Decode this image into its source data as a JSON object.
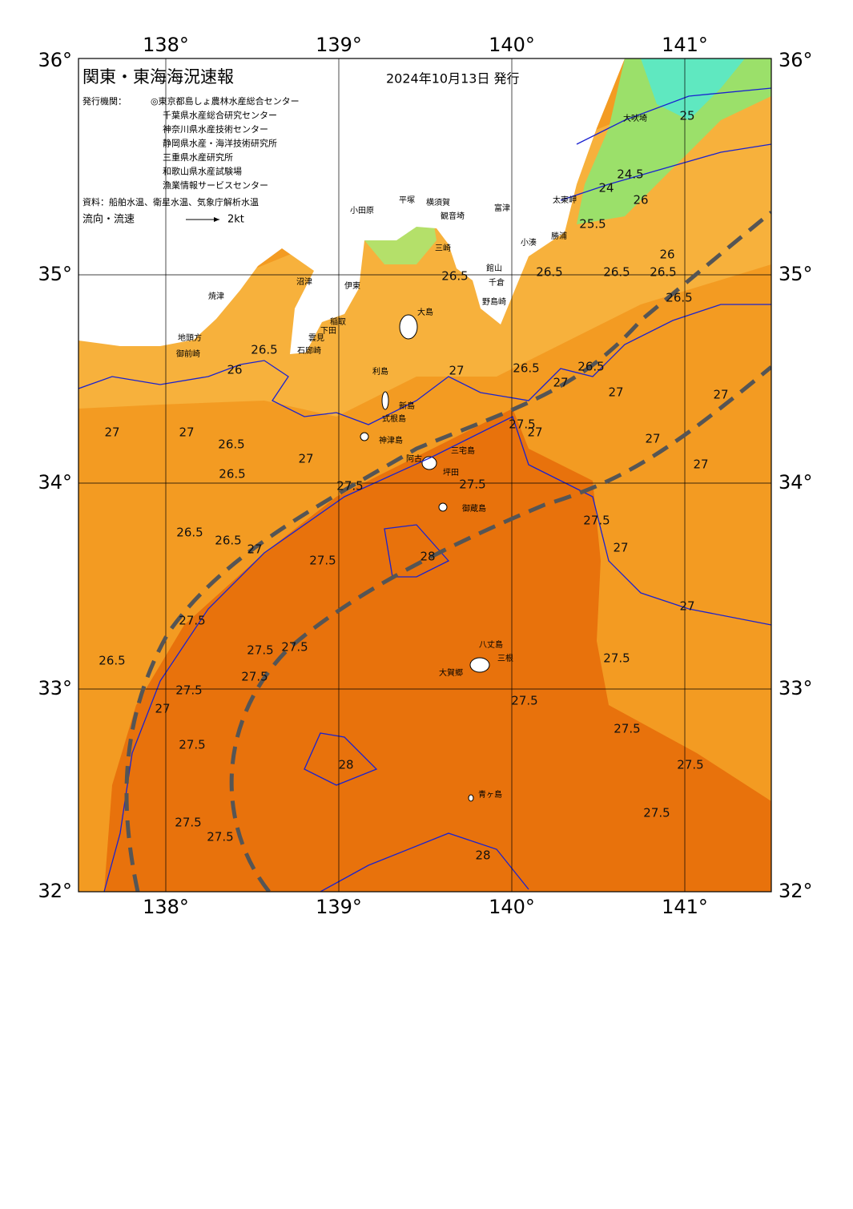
{
  "map": {
    "title": "関東・東海海況速報",
    "date": "2024年10月13日 発行",
    "publisher_label": "発行機関：",
    "publishers": [
      "◎東京都島しょ農林水産総合センター",
      "千葉県水産総合研究センター",
      "神奈川県水産技術センター",
      "静岡県水産・海洋技術研究所",
      "三重県水産研究所",
      "和歌山県水産試験場",
      "漁業情報サービスセンター"
    ],
    "source": "資料：船舶水温、衛星水温、気象庁解析水温",
    "flow_label": "流向・流速",
    "flow_scale": "2kt",
    "lon_labels": [
      "138°",
      "139°",
      "140°",
      "141°"
    ],
    "lat_labels": [
      "36°",
      "35°",
      "34°",
      "33°",
      "32°"
    ],
    "place_names": [
      "大吠埼",
      "太東岬",
      "勝浦",
      "小湊",
      "館山",
      "千倉",
      "野島崎",
      "富津",
      "横須賀",
      "観音埼",
      "平塚",
      "小田原",
      "三崎",
      "大島",
      "利島",
      "新島",
      "式根島",
      "神津島",
      "三宅島",
      "阿古",
      "坪田",
      "御蔵島",
      "八丈島",
      "三根",
      "大賀郷",
      "青ヶ島",
      "焼津",
      "沼津",
      "伊東",
      "稲取",
      "下田",
      "雲見",
      "石廊崎",
      "地頭方",
      "御前崎"
    ],
    "contour_labels": [
      "24.5",
      "24",
      "26",
      "25.5",
      "25",
      "26.5",
      "26.5",
      "26",
      "26.5",
      "26.5",
      "26.5",
      "26.5",
      "26",
      "26.5",
      "26.5",
      "27",
      "27",
      "27",
      "27",
      "27",
      "26.5",
      "27",
      "26.5",
      "27.5",
      "27",
      "27.5",
      "27.5",
      "27",
      "27",
      "27",
      "26.5",
      "26.5",
      "27",
      "27.5",
      "28",
      "27.5",
      "27",
      "27",
      "27.5",
      "26.5",
      "27.5",
      "27.5",
      "27.5",
      "27.5",
      "27",
      "27.5",
      "27.5",
      "27.5",
      "27.5",
      "28",
      "27.5",
      "27.5",
      "27.5",
      "27.5",
      "28"
    ]
  }
}
